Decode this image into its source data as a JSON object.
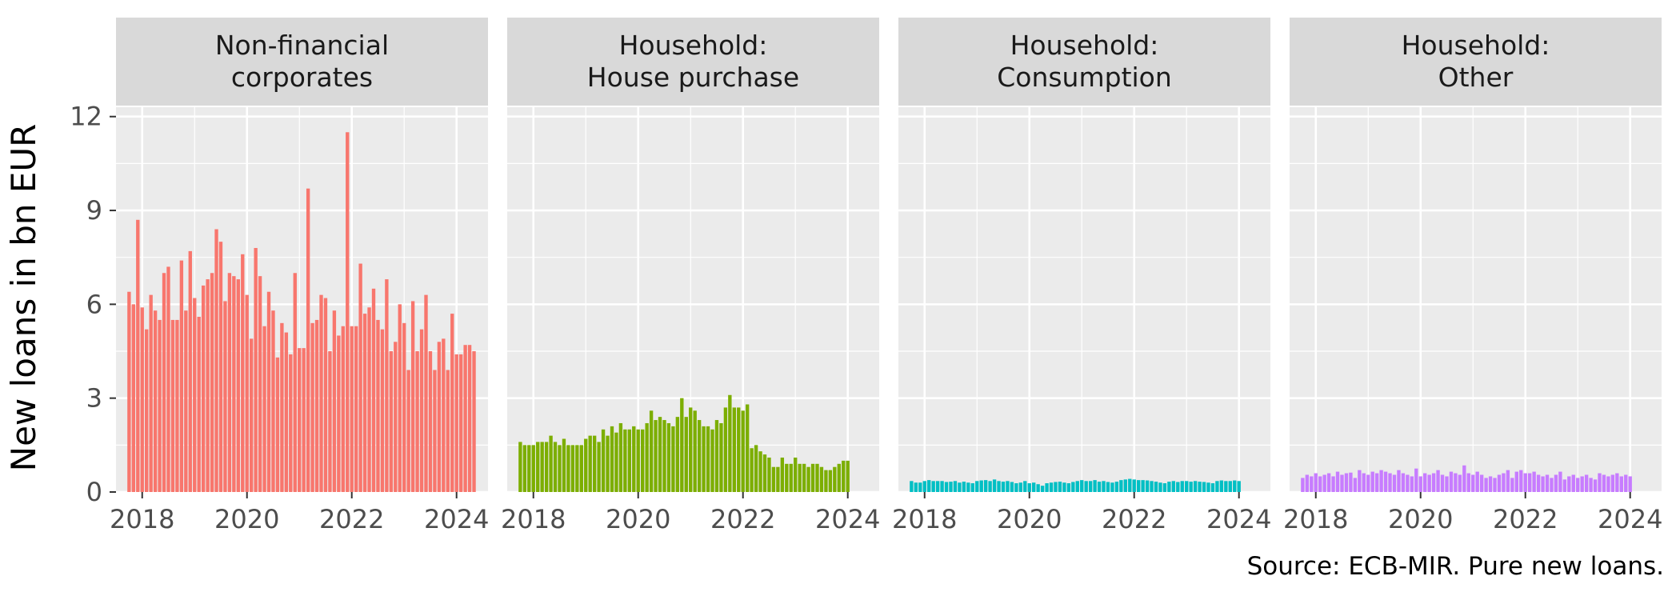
{
  "chart_data": {
    "type": "bar",
    "ylabel": "New loans in bn EUR",
    "caption": "Source: ECB-MIR. Pure new loans.",
    "ylim": [
      0,
      12.3
    ],
    "yticks": [
      0,
      3,
      6,
      9,
      12
    ],
    "xlim": [
      2017.5,
      2024.6
    ],
    "xticks": [
      2018,
      2020,
      2022,
      2024
    ],
    "x_start": 2017.75,
    "x_step_months": 1,
    "grid": true,
    "panels": [
      {
        "title_lines": [
          "Non-financial",
          "corporates"
        ],
        "color": "#F8766D",
        "values": [
          6.4,
          6.0,
          8.7,
          5.9,
          5.2,
          6.3,
          5.8,
          5.5,
          7.0,
          7.2,
          5.5,
          5.5,
          7.4,
          5.8,
          7.7,
          6.2,
          5.6,
          6.6,
          6.8,
          7.0,
          8.4,
          8.0,
          6.1,
          7.0,
          6.9,
          6.8,
          7.6,
          6.3,
          4.9,
          7.8,
          6.9,
          5.3,
          6.4,
          5.8,
          4.3,
          5.4,
          5.1,
          4.4,
          7.0,
          4.6,
          4.6,
          9.7,
          5.4,
          5.5,
          6.3,
          6.2,
          4.5,
          5.8,
          5.0,
          5.3,
          11.5,
          5.3,
          5.3,
          7.3,
          5.7,
          5.9,
          6.5,
          5.5,
          5.2,
          6.8,
          4.5,
          4.8,
          6.0,
          5.4,
          3.9,
          6.1,
          4.5,
          5.2,
          6.3,
          4.5,
          3.9,
          4.8,
          4.9,
          3.9,
          5.7,
          4.4,
          4.4,
          4.7,
          4.7,
          4.5
        ]
      },
      {
        "title_lines": [
          "Household:",
          "House purchase"
        ],
        "color": "#7CAE00",
        "values": [
          1.6,
          1.5,
          1.5,
          1.5,
          1.6,
          1.6,
          1.6,
          1.8,
          1.6,
          1.5,
          1.7,
          1.5,
          1.5,
          1.5,
          1.5,
          1.7,
          1.8,
          1.8,
          1.6,
          2.0,
          1.8,
          2.1,
          1.9,
          2.2,
          2.0,
          2.0,
          2.1,
          2.0,
          2.0,
          2.2,
          2.6,
          2.3,
          2.4,
          2.3,
          2.2,
          2.1,
          2.4,
          3.0,
          2.4,
          2.7,
          2.6,
          2.3,
          2.1,
          2.1,
          2.0,
          2.3,
          2.2,
          2.7,
          3.1,
          2.7,
          2.7,
          2.6,
          2.8,
          1.4,
          1.5,
          1.3,
          1.2,
          1.1,
          0.8,
          0.8,
          1.1,
          0.9,
          0.9,
          1.1,
          0.9,
          0.9,
          0.8,
          0.9,
          0.9,
          0.8,
          0.7,
          0.7,
          0.8,
          0.9,
          1.0,
          1.0
        ]
      },
      {
        "title_lines": [
          "Household:",
          "Consumption"
        ],
        "color": "#00BFC4",
        "values": [
          0.35,
          0.3,
          0.3,
          0.35,
          0.38,
          0.35,
          0.35,
          0.35,
          0.32,
          0.33,
          0.35,
          0.3,
          0.33,
          0.3,
          0.28,
          0.35,
          0.37,
          0.38,
          0.35,
          0.4,
          0.35,
          0.33,
          0.35,
          0.32,
          0.28,
          0.3,
          0.35,
          0.28,
          0.3,
          0.25,
          0.2,
          0.28,
          0.3,
          0.32,
          0.33,
          0.3,
          0.28,
          0.32,
          0.35,
          0.38,
          0.35,
          0.35,
          0.38,
          0.33,
          0.35,
          0.32,
          0.3,
          0.33,
          0.38,
          0.4,
          0.42,
          0.4,
          0.38,
          0.38,
          0.37,
          0.35,
          0.33,
          0.3,
          0.28,
          0.33,
          0.35,
          0.32,
          0.35,
          0.35,
          0.33,
          0.35,
          0.33,
          0.32,
          0.3,
          0.28,
          0.35,
          0.37,
          0.35,
          0.35,
          0.37,
          0.35
        ]
      },
      {
        "title_lines": [
          "Household:",
          "Other"
        ],
        "color": "#C77CFF",
        "values": [
          0.45,
          0.55,
          0.5,
          0.6,
          0.5,
          0.55,
          0.6,
          0.5,
          0.65,
          0.55,
          0.6,
          0.62,
          0.45,
          0.7,
          0.6,
          0.55,
          0.65,
          0.6,
          0.7,
          0.65,
          0.6,
          0.55,
          0.7,
          0.6,
          0.55,
          0.5,
          0.75,
          0.5,
          0.6,
          0.55,
          0.6,
          0.7,
          0.55,
          0.5,
          0.65,
          0.6,
          0.55,
          0.85,
          0.6,
          0.55,
          0.65,
          0.55,
          0.45,
          0.5,
          0.45,
          0.55,
          0.6,
          0.7,
          0.45,
          0.65,
          0.7,
          0.6,
          0.6,
          0.65,
          0.55,
          0.5,
          0.55,
          0.45,
          0.55,
          0.65,
          0.4,
          0.5,
          0.55,
          0.45,
          0.5,
          0.55,
          0.45,
          0.4,
          0.6,
          0.55,
          0.5,
          0.55,
          0.6,
          0.5,
          0.55,
          0.5
        ]
      }
    ]
  }
}
